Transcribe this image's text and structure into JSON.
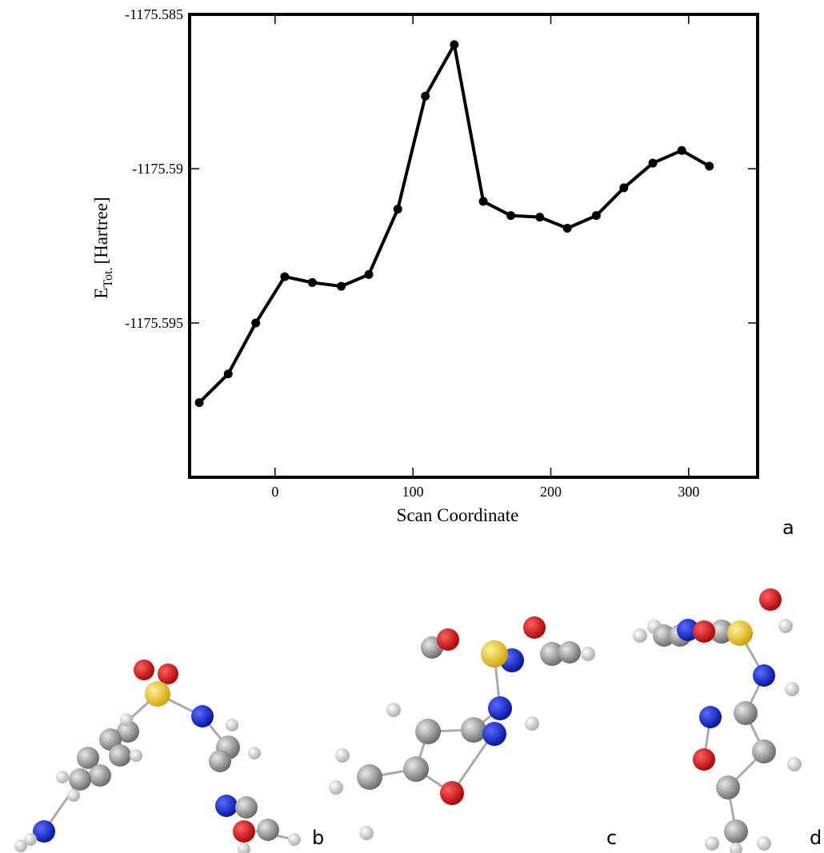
{
  "chart_data": {
    "type": "line",
    "xlabel": "Scan Coordinate",
    "ylabel": {
      "main": "E",
      "sub": "Tot.",
      "unit": "[Hartree]"
    },
    "x": [
      -55,
      -34,
      -14,
      7,
      27,
      48,
      68,
      89,
      109,
      130,
      151,
      171,
      192,
      212,
      233,
      253,
      274,
      295,
      315
    ],
    "series": [
      {
        "color": "#000000",
        "values": [
          -1175.59758,
          -1175.59665,
          -1175.595,
          -1175.5935,
          -1175.59369,
          -1175.59381,
          -1175.59343,
          -1175.59131,
          -1175.58765,
          -1175.58598,
          -1175.59106,
          -1175.59152,
          -1175.59157,
          -1175.59193,
          -1175.59152,
          -1175.59062,
          -1175.58982,
          -1175.58941,
          -1175.58992
        ]
      }
    ],
    "xlim": [
      -62,
      350
    ],
    "ylim": [
      -1175.6,
      -1175.585
    ],
    "xticks": [
      0,
      100,
      200,
      300
    ],
    "yticks": [
      -1175.585,
      -1175.59,
      -1175.595
    ]
  },
  "panel_labels": [
    "a",
    "b",
    "c",
    "d"
  ]
}
